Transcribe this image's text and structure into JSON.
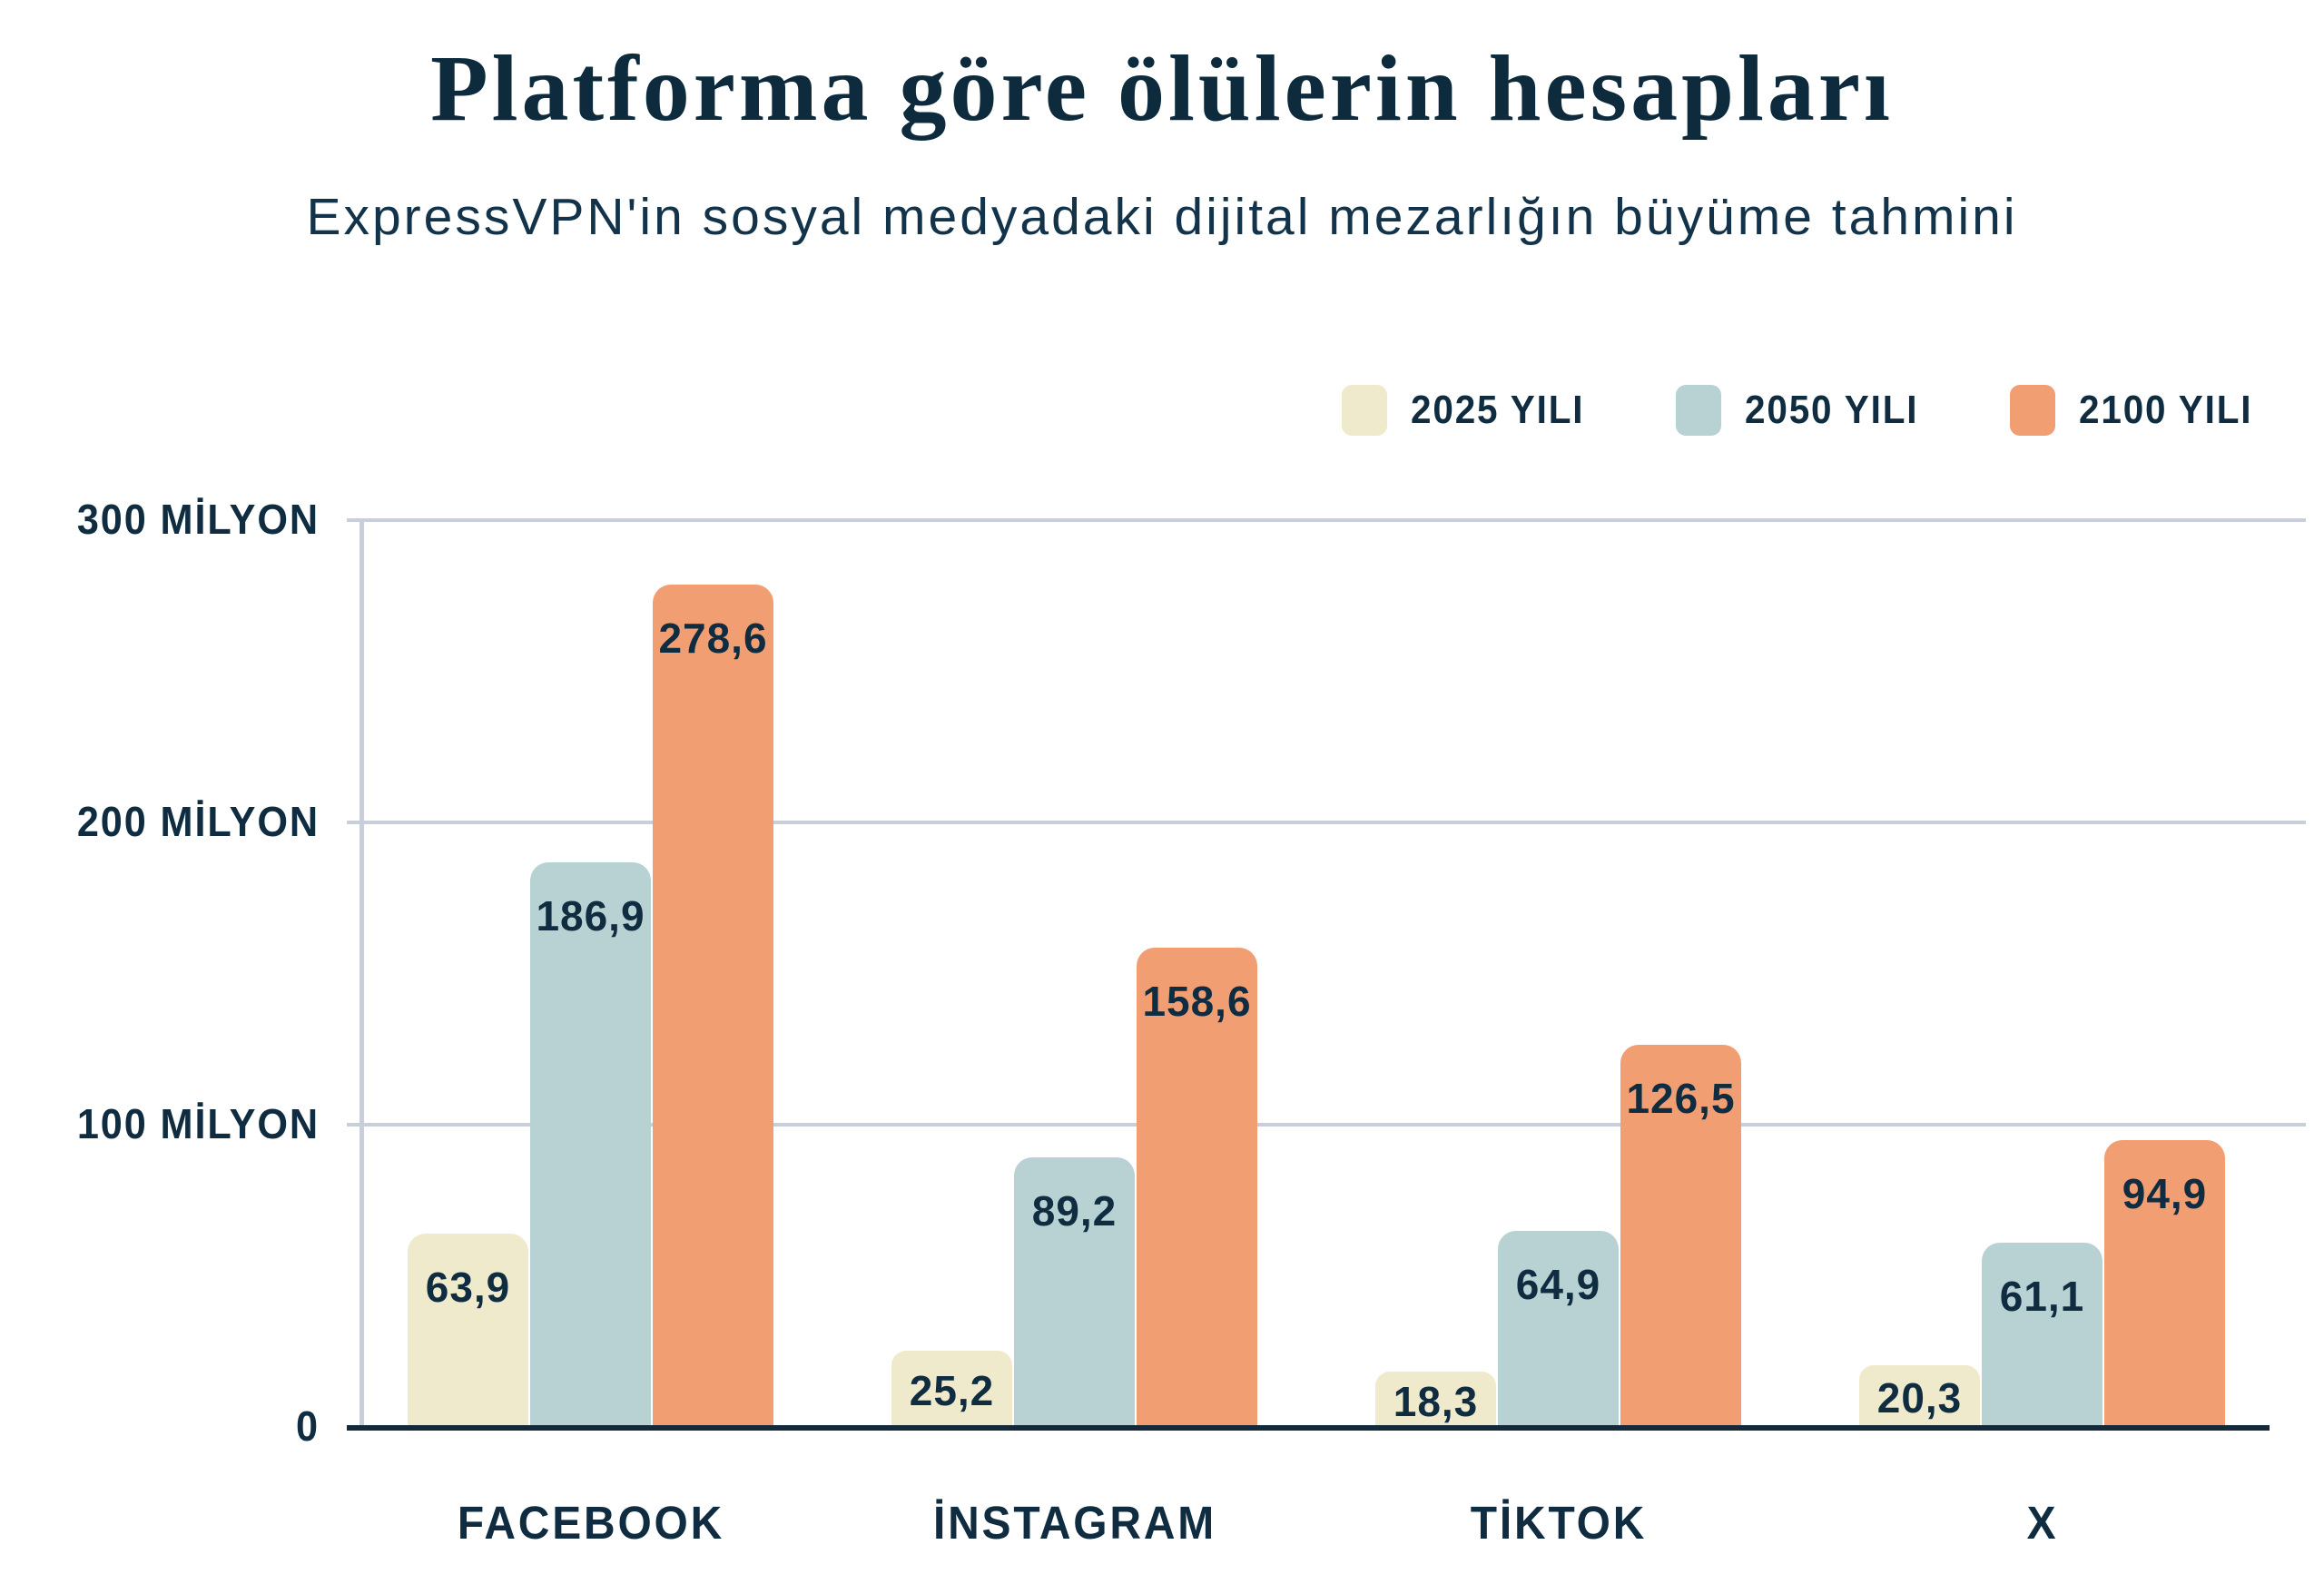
{
  "title": "Platforma göre ölülerin hesapları",
  "subtitle": "ExpressVPN'in sosyal medyadaki dijital mezarlığın büyüme tahmini",
  "legend": {
    "items": [
      {
        "label": "2025 YILI",
        "color": "#F0EACD"
      },
      {
        "label": "2050 YILI",
        "color": "#B8D2D3"
      },
      {
        "label": "2100 YILI",
        "color": "#F19E73"
      }
    ]
  },
  "colors": {
    "text": "#0F2C40",
    "title": "#0E2B3E",
    "gridline": "#C9CFD8",
    "axis_line": "#C9CFD8",
    "baseline": "#14293A",
    "background": "#FFFFFF",
    "series_2025": "#F0EACD",
    "series_2050": "#B8D2D3",
    "series_2100": "#F19E73"
  },
  "chart_data": {
    "type": "bar",
    "categories": [
      "FACEBOOK",
      "İNSTAGRAM",
      "TİKTOK",
      "X"
    ],
    "series": [
      {
        "name": "2025 YILI",
        "color": "#F0EACD",
        "values": [
          63.9,
          25.2,
          18.3,
          20.3
        ]
      },
      {
        "name": "2050 YILI",
        "color": "#B8D2D3",
        "values": [
          186.9,
          89.2,
          64.9,
          61.1
        ]
      },
      {
        "name": "2100 YILI",
        "color": "#F19E73",
        "values": [
          278.6,
          158.6,
          126.5,
          94.9
        ]
      }
    ],
    "value_labels": [
      [
        "63,9",
        "25,2",
        "18,3",
        "20,3"
      ],
      [
        "186,9",
        "89,2",
        "64,9",
        "61,1"
      ],
      [
        "278,6",
        "158,6",
        "126,5",
        "94,9"
      ]
    ],
    "title": "Platforma göre ölülerin hesapları",
    "subtitle": "ExpressVPN'in sosyal medyadaki dijital mezarlığın büyüme tahmini",
    "xlabel": "",
    "ylabel": "",
    "ylim": [
      0,
      300
    ],
    "y_axis": {
      "max": 300,
      "ticks": [
        {
          "value": 300,
          "label": "300 MİLYON"
        },
        {
          "value": 200,
          "label": "200 MİLYON"
        },
        {
          "value": 100,
          "label": "100 MİLYON"
        },
        {
          "value": 0,
          "label": "0"
        }
      ]
    },
    "grid": true,
    "legend_position": "top-right"
  }
}
